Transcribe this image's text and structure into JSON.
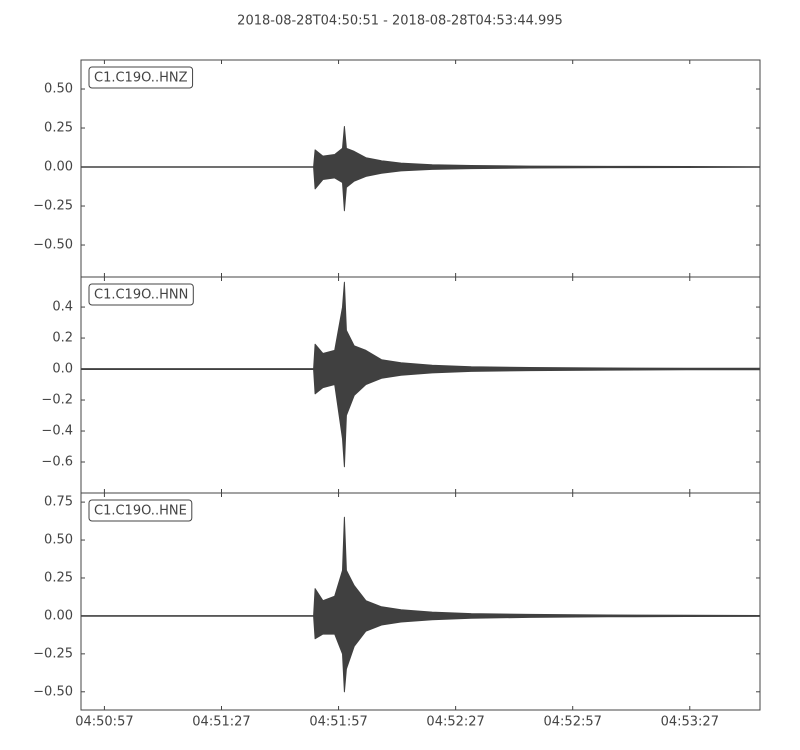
{
  "title": "2018-08-28T04:50:51  -  2018-08-28T04:53:44.995",
  "chart_data": [
    {
      "type": "envelope",
      "label": "C1.C19O..HNZ",
      "color": "#404040",
      "xlim": [
        0,
        173.995
      ],
      "ylim": [
        -0.705,
        0.686
      ],
      "yticks": [
        {
          "value": 0.5,
          "label": "0.50"
        },
        {
          "value": 0.25,
          "label": "0.25"
        },
        {
          "value": 0,
          "label": "0.00"
        },
        {
          "value": -0.25,
          "label": "−0.25"
        },
        {
          "value": -0.5,
          "label": "−0.50"
        }
      ],
      "x": [
        0,
        59.6,
        60,
        62,
        65,
        67,
        67.5,
        68,
        70,
        73,
        77,
        82,
        90,
        100,
        115,
        135,
        155,
        173.995
      ],
      "upper": [
        0.002,
        0.002,
        0.11,
        0.07,
        0.08,
        0.12,
        0.26,
        0.12,
        0.1,
        0.06,
        0.04,
        0.025,
        0.015,
        0.01,
        0.006,
        0.004,
        0.003,
        0.002
      ],
      "lower": [
        -0.002,
        -0.002,
        -0.14,
        -0.08,
        -0.07,
        -0.1,
        -0.28,
        -0.13,
        -0.09,
        -0.06,
        -0.04,
        -0.025,
        -0.015,
        -0.01,
        -0.006,
        -0.004,
        -0.003,
        -0.002
      ]
    },
    {
      "type": "envelope",
      "label": "C1.C19O..HNN",
      "color": "#404040",
      "xlim": [
        0,
        173.995
      ],
      "ylim": [
        -0.8,
        0.594
      ],
      "yticks": [
        0.4,
        0.2,
        {
          "value": 0,
          "label": "0.0"
        },
        {
          "value": -0.2,
          "label": "−0.2"
        },
        {
          "value": -0.4,
          "label": "−0.4"
        },
        {
          "value": -0.6,
          "label": "−0.6"
        }
      ],
      "x": [
        0,
        59.6,
        60,
        62,
        65,
        67,
        67.5,
        68,
        70,
        73,
        77,
        82,
        90,
        100,
        115,
        135,
        155,
        173.995
      ],
      "upper": [
        0.003,
        0.003,
        0.16,
        0.1,
        0.12,
        0.4,
        0.56,
        0.25,
        0.15,
        0.12,
        0.06,
        0.04,
        0.025,
        0.015,
        0.01,
        0.007,
        0.005,
        0.005
      ],
      "lower": [
        -0.003,
        -0.003,
        -0.16,
        -0.12,
        -0.1,
        -0.45,
        -0.63,
        -0.3,
        -0.17,
        -0.1,
        -0.06,
        -0.04,
        -0.025,
        -0.015,
        -0.01,
        -0.007,
        -0.005,
        -0.005
      ]
    },
    {
      "type": "envelope",
      "label": "C1.C19O..HNE",
      "color": "#404040",
      "xlim": [
        0,
        173.995
      ],
      "ylim": [
        -0.62,
        0.81
      ],
      "yticks": [
        0.75,
        {
          "value": 0.5,
          "label": "0.50"
        },
        0.25,
        {
          "value": 0,
          "label": "0.00"
        },
        {
          "value": -0.25,
          "label": "−0.25"
        },
        {
          "value": -0.5,
          "label": "−0.50"
        }
      ],
      "xticks": [
        {
          "value": 6,
          "label": "04:50:57"
        },
        {
          "value": 36,
          "label": "04:51:27"
        },
        {
          "value": 66,
          "label": "04:51:57"
        },
        {
          "value": 96,
          "label": "04:52:27"
        },
        {
          "value": 126,
          "label": "04:52:57"
        },
        {
          "value": 156,
          "label": "04:53:27"
        }
      ],
      "x": [
        0,
        59.6,
        60,
        62,
        65,
        67,
        67.5,
        68,
        70,
        73,
        77,
        82,
        90,
        100,
        115,
        135,
        155,
        173.995
      ],
      "upper": [
        0.002,
        0.002,
        0.18,
        0.1,
        0.13,
        0.3,
        0.65,
        0.3,
        0.2,
        0.1,
        0.06,
        0.04,
        0.025,
        0.015,
        0.01,
        0.006,
        0.004,
        0.003
      ],
      "lower": [
        -0.002,
        -0.002,
        -0.15,
        -0.12,
        -0.12,
        -0.25,
        -0.5,
        -0.35,
        -0.2,
        -0.1,
        -0.06,
        -0.04,
        -0.025,
        -0.015,
        -0.01,
        -0.006,
        -0.004,
        -0.003
      ]
    }
  ]
}
